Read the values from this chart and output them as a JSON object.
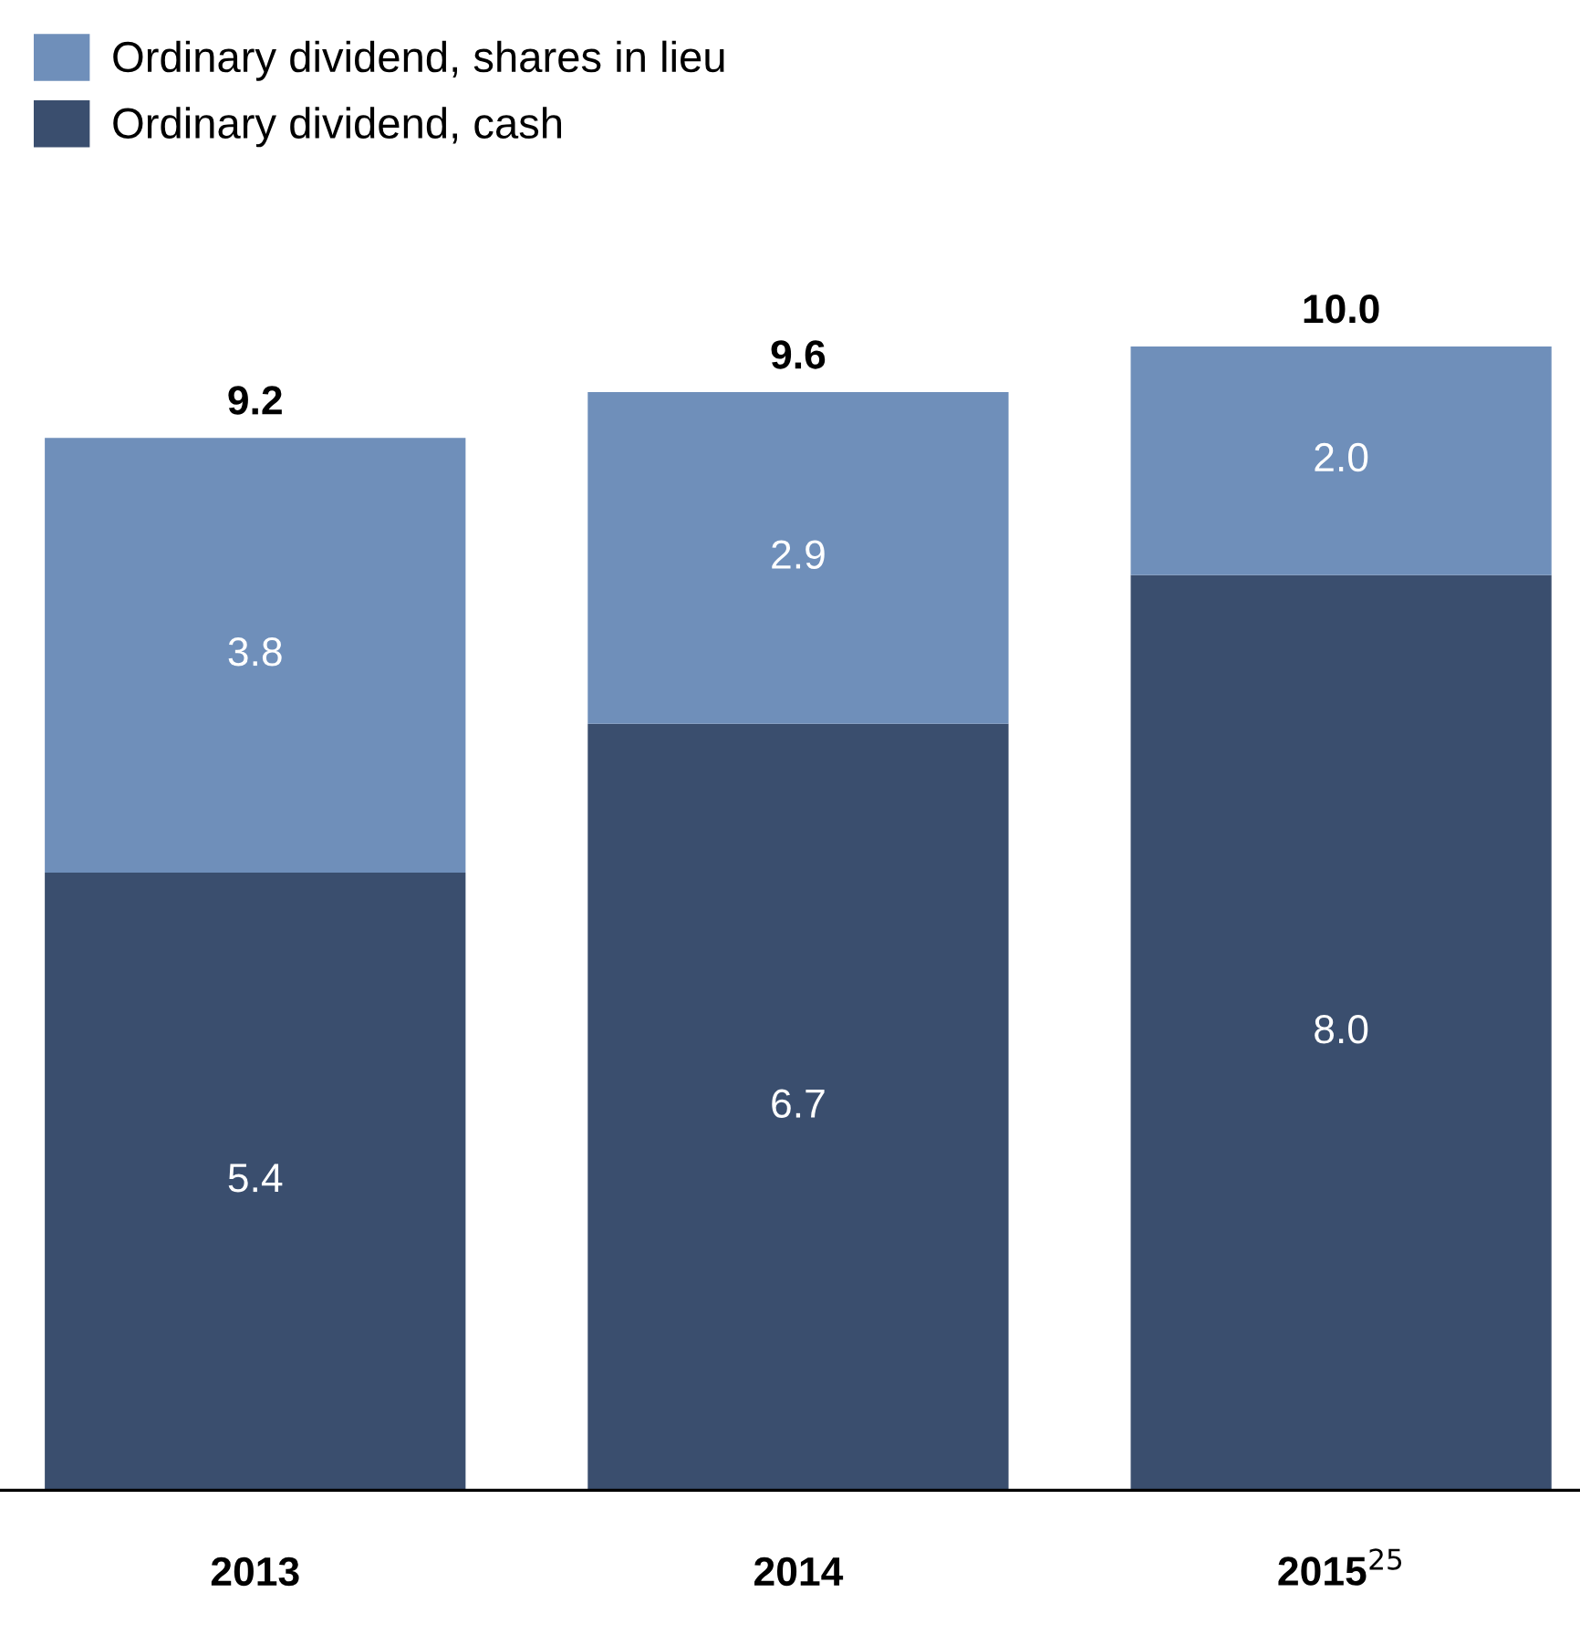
{
  "chart_data": {
    "type": "bar",
    "stacked": true,
    "categories": [
      "2013",
      "2014",
      "2015$^{25}$"
    ],
    "series": [
      {
        "name": "Ordinary dividend, cash",
        "color": "#3a4e6e",
        "values": [
          5.4,
          6.7,
          8.0
        ],
        "value_labels": [
          "5.4",
          "6.7",
          "8.0"
        ]
      },
      {
        "name": "Ordinary dividend, shares in lieu",
        "color": "#6f8fba",
        "values": [
          3.8,
          2.9,
          2.0
        ],
        "value_labels": [
          "3.8",
          "2.9",
          "2.0"
        ]
      }
    ],
    "totals": [
      "9.2",
      "9.6",
      "10.0"
    ],
    "legend": "top left",
    "grid": false
  }
}
